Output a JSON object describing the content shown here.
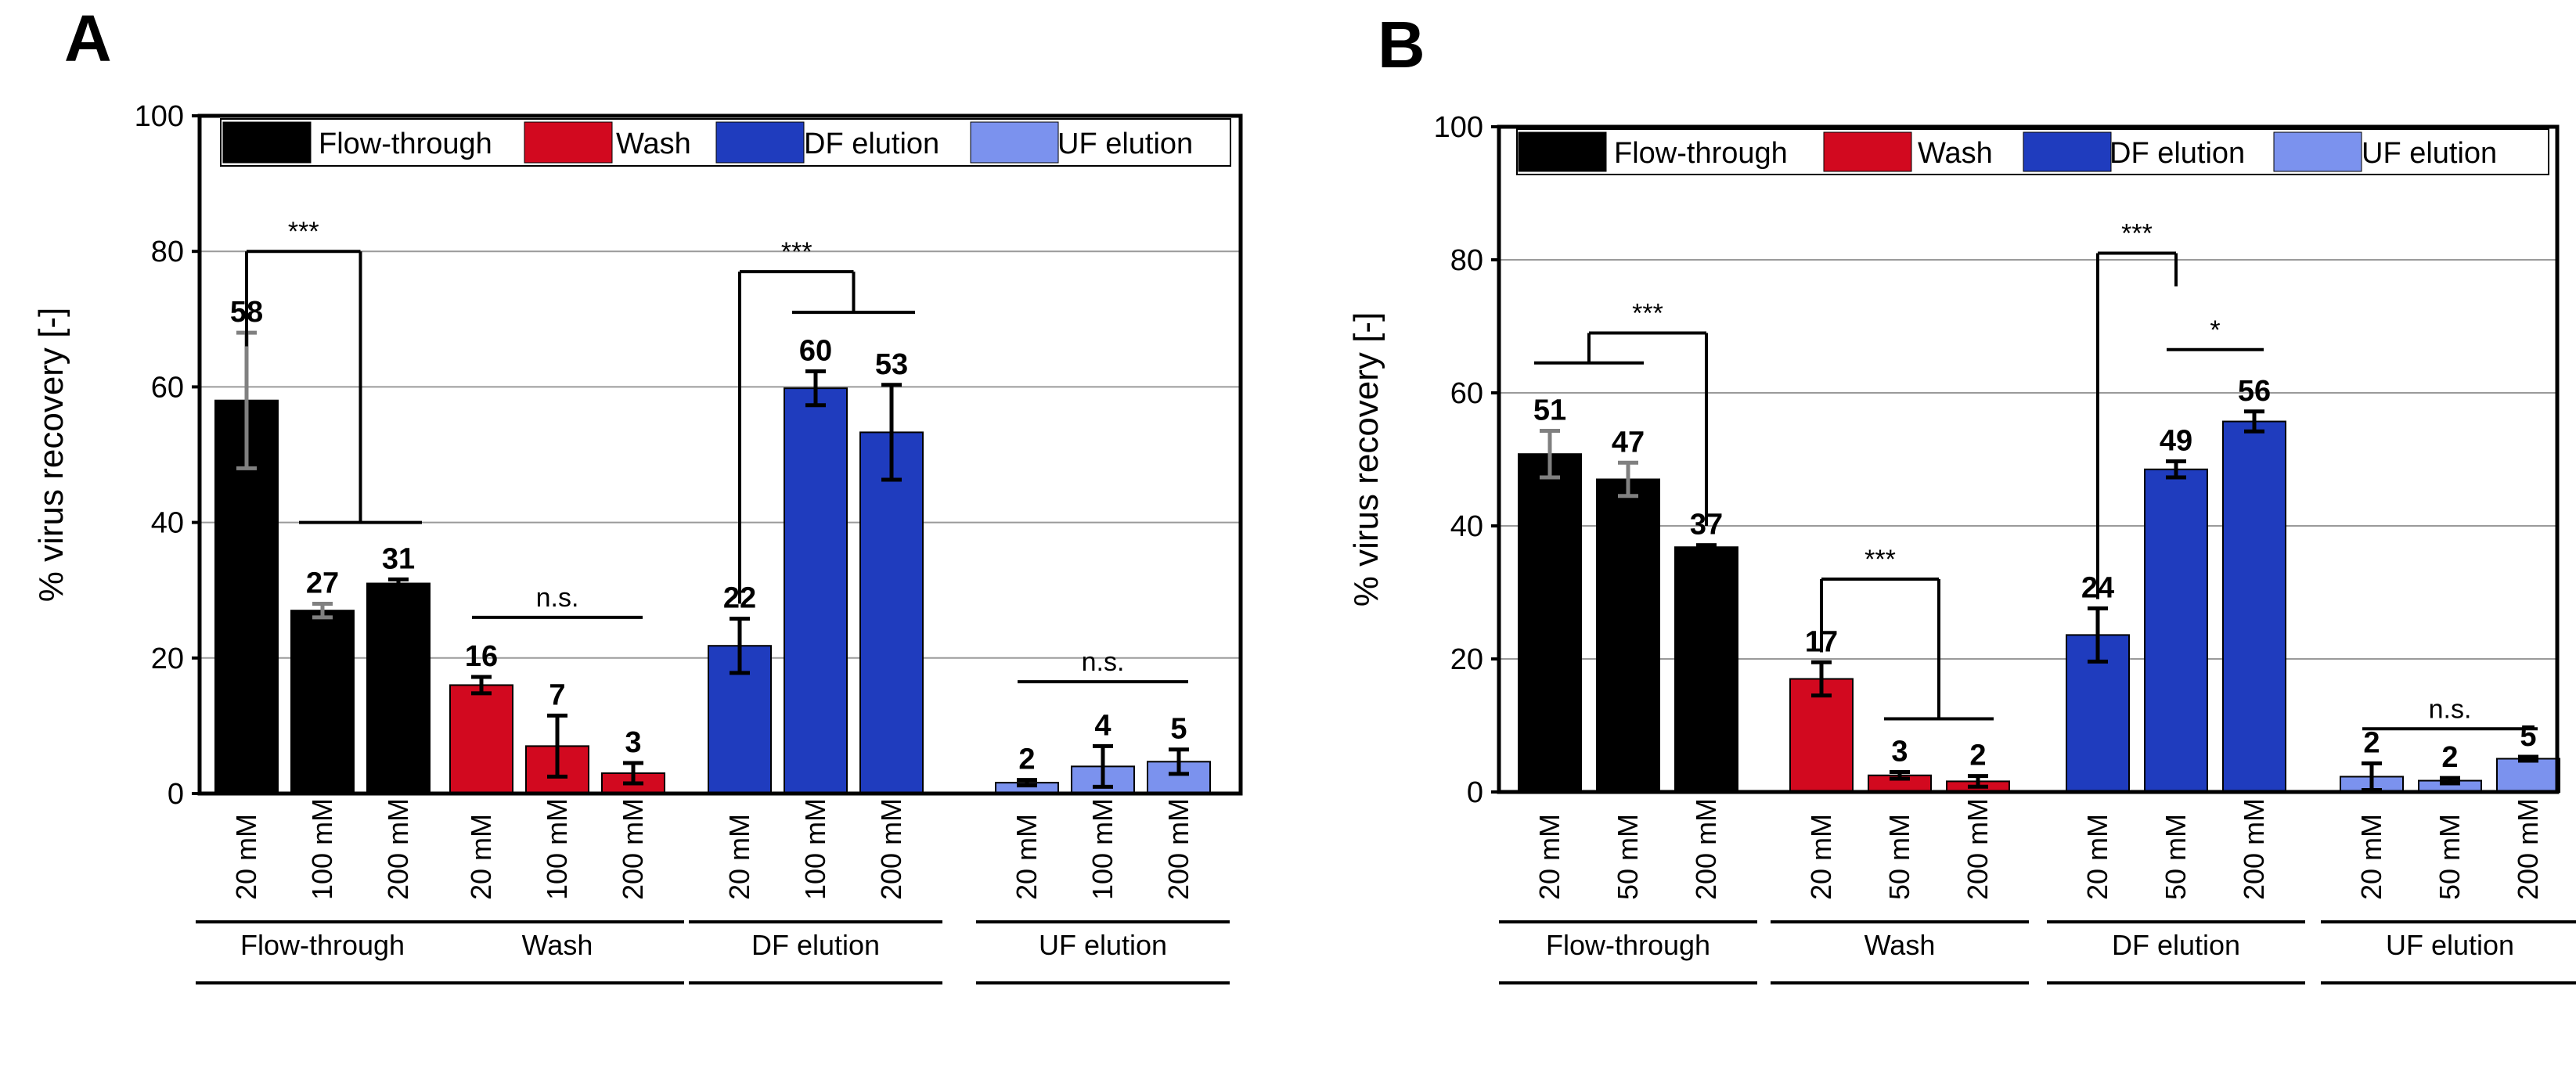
{
  "chart_data": [
    {
      "type": "bar",
      "panel": "A",
      "ylabel": "% virus recovery [-]",
      "ylim": [
        0,
        100
      ],
      "yticks": [
        0,
        20,
        40,
        60,
        80,
        100
      ],
      "grid": true,
      "legend": {
        "placement": "top",
        "entries": [
          {
            "label": "Flow-through",
            "color": "#000000"
          },
          {
            "label": "Wash",
            "color": "#d2091f"
          },
          {
            "label": "DF elution",
            "color": "#1f3cbe"
          },
          {
            "label": "UF elution",
            "color": "#7b92ee"
          }
        ]
      },
      "groups": [
        {
          "name": "Flow-through",
          "color": "#000000",
          "categories": [
            "20 mM",
            "100 mM",
            "200 mM"
          ],
          "values": [
            58,
            27,
            31
          ],
          "labels": [
            "58",
            "27",
            "31"
          ],
          "err": [
            10,
            1,
            0.6
          ],
          "err_color": [
            "#808080",
            "#808080",
            "#000000"
          ]
        },
        {
          "name": "Wash",
          "color": "#d2091f",
          "categories": [
            "20 mM",
            "100 mM",
            "200 mM"
          ],
          "values": [
            16,
            7,
            3
          ],
          "labels": [
            "16",
            "7",
            "3"
          ],
          "err": [
            1.2,
            4.5,
            1.5
          ],
          "err_color": [
            "#000000",
            "#000000",
            "#000000"
          ]
        },
        {
          "name": "DF elution",
          "color": "#1f3cbe",
          "categories": [
            "20 mM",
            "100 mM",
            "200 mM"
          ],
          "values": [
            21.8,
            59.8,
            53.3
          ],
          "labels": [
            "22",
            "60",
            "53"
          ],
          "err": [
            4,
            2.5,
            7
          ],
          "err_color": [
            "#000000",
            "#000000",
            "#000000"
          ]
        },
        {
          "name": "UF elution",
          "color": "#7b92ee",
          "categories": [
            "20 mM",
            "100 mM",
            "200 mM"
          ],
          "values": [
            1.6,
            4,
            4.7
          ],
          "labels": [
            "2",
            "4",
            "5"
          ],
          "err": [
            0.4,
            3,
            1.8
          ],
          "err_color": [
            "#000000",
            "#000000",
            "#000000"
          ]
        }
      ],
      "significance": [
        {
          "label": "***",
          "kind": "two-bar",
          "from": [
            0,
            0
          ],
          "to": [
            0,
            1
          ],
          "to_span": [
            0,
            1,
            0,
            2
          ],
          "level": 80,
          "drop_from": 66,
          "drop_to": 40
        },
        {
          "label": "n.s.",
          "kind": "flat",
          "from": [
            1,
            0
          ],
          "to": [
            1,
            2
          ],
          "level": 26
        },
        {
          "label": "***",
          "kind": "two-bar",
          "from": [
            2,
            0
          ],
          "to": [
            2,
            1
          ],
          "to_span": [
            2,
            1,
            2,
            2
          ],
          "level": 77,
          "drop_from": 28,
          "drop_to": 71
        },
        {
          "label": "n.s.",
          "kind": "flat",
          "from": [
            3,
            0
          ],
          "to": [
            3,
            2
          ],
          "level": 16.5
        }
      ]
    },
    {
      "type": "bar",
      "panel": "B",
      "ylabel": "% virus recovery [-]",
      "ylim": [
        0,
        100
      ],
      "yticks": [
        0,
        20,
        40,
        60,
        80,
        100
      ],
      "grid": true,
      "legend": {
        "placement": "top",
        "entries": [
          {
            "label": "Flow-through",
            "color": "#000000"
          },
          {
            "label": "Wash",
            "color": "#d2091f"
          },
          {
            "label": "DF elution",
            "color": "#1f3cbe"
          },
          {
            "label": "UF elution",
            "color": "#7b92ee"
          }
        ]
      },
      "groups": [
        {
          "name": "Flow-through",
          "color": "#000000",
          "categories": [
            "20 mM",
            "50 mM",
            "200 mM"
          ],
          "values": [
            50.8,
            47,
            36.8
          ],
          "labels": [
            "51",
            "47",
            "37"
          ],
          "err": [
            3.5,
            2.5,
            0.3
          ],
          "err_color": [
            "#808080",
            "#808080",
            "#000000"
          ]
        },
        {
          "name": "Wash",
          "color": "#d2091f",
          "categories": [
            "20 mM",
            "50 mM",
            "200 mM"
          ],
          "values": [
            17,
            2.5,
            1.6
          ],
          "labels": [
            "17",
            "3",
            "2"
          ],
          "err": [
            2.5,
            0.5,
            0.8
          ],
          "err_color": [
            "#000000",
            "#000000",
            "#000000"
          ]
        },
        {
          "name": "DF elution",
          "color": "#1f3cbe",
          "categories": [
            "20 mM",
            "50 mM",
            "200 mM"
          ],
          "values": [
            23.6,
            48.5,
            55.7
          ],
          "labels": [
            "24",
            "49",
            "56"
          ],
          "err": [
            4,
            1.2,
            1.5
          ],
          "err_color": [
            "#000000",
            "#000000",
            "#000000"
          ]
        },
        {
          "name": "UF elution",
          "color": "#7b92ee",
          "categories": [
            "20 mM",
            "50 mM",
            "200 mM"
          ],
          "values": [
            2.3,
            1.7,
            5
          ],
          "labels": [
            "2",
            "2",
            "5"
          ],
          "err": [
            2,
            0.4,
            0.3
          ],
          "err_color": [
            "#000000",
            "#000000",
            "#000000"
          ]
        }
      ],
      "significance": [
        {
          "label": "***",
          "kind": "span-to-bar",
          "span": [
            0,
            0,
            0,
            1
          ],
          "to": [
            0,
            2
          ],
          "level": 69,
          "span_level": 64.5,
          "drop_to": 40
        },
        {
          "label": "***",
          "kind": "bar-to-span",
          "from": [
            1,
            0
          ],
          "span": [
            1,
            1,
            1,
            2
          ],
          "level": 32,
          "drop_from": 21,
          "span_level": 11
        },
        {
          "label": "***",
          "kind": "two-bar",
          "from": [
            2,
            0
          ],
          "to": [
            2,
            1
          ],
          "level": 81,
          "drop_from": 29,
          "drop_to": 76
        },
        {
          "label": "*",
          "kind": "flat",
          "from": [
            2,
            1
          ],
          "to": [
            2,
            2
          ],
          "level": 66.5
        },
        {
          "label": "n.s.",
          "kind": "flat",
          "from": [
            3,
            0
          ],
          "to": [
            3,
            2
          ],
          "level": 9.5
        }
      ]
    }
  ]
}
